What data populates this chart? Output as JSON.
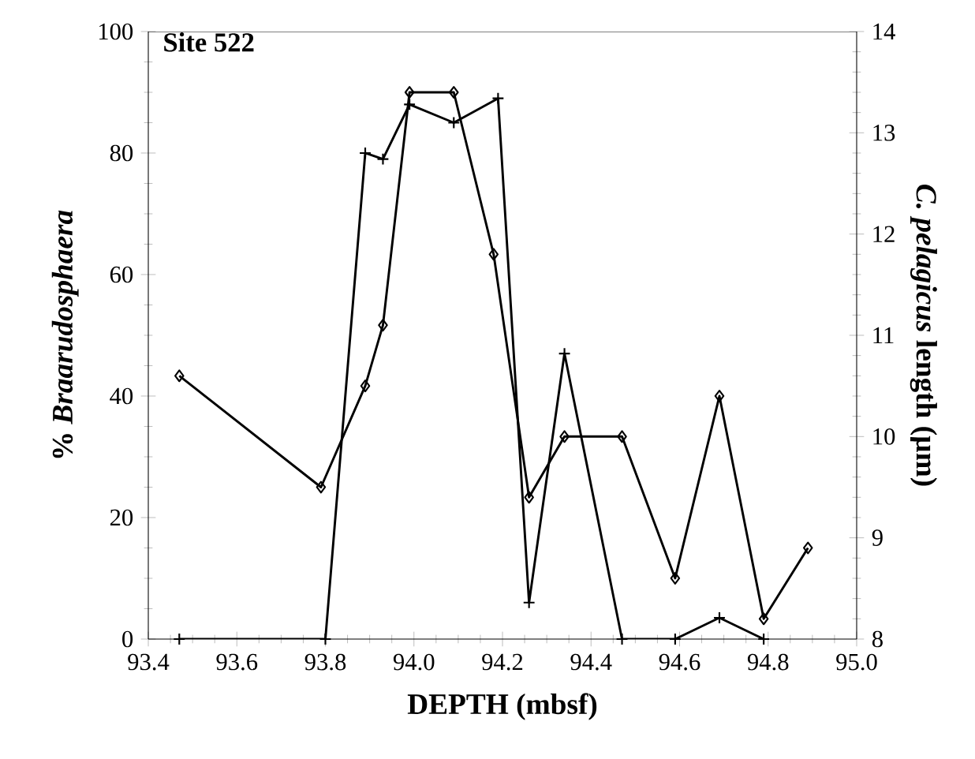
{
  "chart_data": {
    "type": "line",
    "title": "Site 522",
    "xlabel": "DEPTH (mbsf)",
    "ylabel": "% *Braarudosphaera*",
    "y2label": "*C. pelagicus* length (µm)",
    "xlim": [
      93.4,
      95.0
    ],
    "xticks": [
      93.4,
      93.6,
      93.8,
      {
        "value": 94.0,
        "label": "94.0"
      },
      94.2,
      94.4,
      94.6,
      94.8,
      {
        "value": 95.0,
        "label": "95.0"
      }
    ],
    "ylim": [
      0,
      100
    ],
    "yticks": [
      0,
      20,
      40,
      60,
      80,
      100
    ],
    "y2lim": [
      8,
      14
    ],
    "y2ticks": [
      8,
      9,
      10,
      11,
      12,
      13,
      14
    ],
    "line_style": "solid",
    "series": [
      {
        "color": "#000000",
        "marker": "cross",
        "axis": "y",
        "x": [
          93.47,
          93.8,
          93.89,
          93.93,
          93.99,
          94.09,
          94.19,
          94.26,
          94.34,
          94.47,
          94.59,
          94.69,
          94.79
        ],
        "values": [
          0,
          0,
          80,
          79,
          88,
          85,
          89,
          6,
          47,
          0,
          0,
          3.5,
          0
        ]
      },
      {
        "color": "#000000",
        "marker": "diamond",
        "axis": "y2",
        "x": [
          93.47,
          93.79,
          93.89,
          93.93,
          93.99,
          94.09,
          94.18,
          94.26,
          94.34,
          94.47,
          94.59,
          94.69,
          94.79,
          94.89
        ],
        "values": [
          10.6,
          9.5,
          10.5,
          11.1,
          13.4,
          13.4,
          11.8,
          9.4,
          10.0,
          10.0,
          8.6,
          10.4,
          8.2,
          8.9
        ]
      }
    ]
  }
}
